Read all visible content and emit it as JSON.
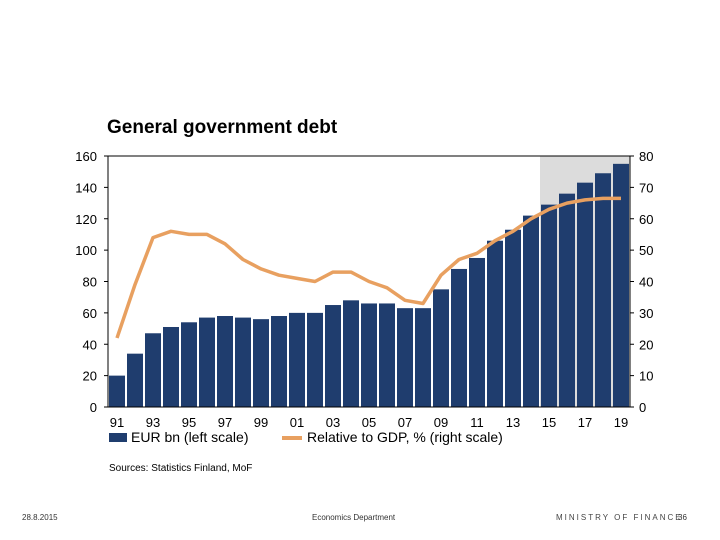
{
  "chart_data": {
    "type": "bar",
    "title": "General government debt",
    "x_tick_labels": [
      "91",
      "93",
      "95",
      "97",
      "99",
      "01",
      "03",
      "05",
      "07",
      "09",
      "11",
      "13",
      "15",
      "17",
      "19"
    ],
    "categories": [
      "91",
      "92",
      "93",
      "94",
      "95",
      "96",
      "97",
      "98",
      "99",
      "00",
      "01",
      "02",
      "03",
      "04",
      "05",
      "06",
      "07",
      "08",
      "09",
      "10",
      "11",
      "12",
      "13",
      "14",
      "15",
      "16",
      "17",
      "18",
      "19"
    ],
    "series": [
      {
        "name": "EUR bn (left scale)",
        "type": "bar",
        "axis": "left",
        "color": "#1f3d6e",
        "values": [
          20,
          34,
          47,
          51,
          54,
          57,
          58,
          57,
          56,
          58,
          60,
          60,
          65,
          68,
          66,
          66,
          63,
          63,
          75,
          88,
          95,
          106,
          113,
          122,
          129,
          136,
          143,
          149,
          155
        ]
      },
      {
        "name": "Relative to GDP, % (right scale)",
        "type": "line",
        "axis": "right",
        "color": "#e8a060",
        "values": [
          22,
          39,
          54,
          56,
          55,
          55,
          52,
          47,
          44,
          42,
          41,
          40,
          43,
          43,
          40,
          38,
          34,
          33,
          42,
          47,
          49,
          53,
          56,
          60,
          63,
          65,
          66,
          66.5,
          66.5
        ]
      }
    ],
    "ylim_left": [
      0,
      160
    ],
    "yticks_left": [
      0,
      20,
      40,
      60,
      80,
      100,
      120,
      140,
      160
    ],
    "ylim_right": [
      0,
      80
    ],
    "yticks_right": [
      0,
      10,
      20,
      30,
      40,
      50,
      60,
      70,
      80
    ],
    "forecast_shading": {
      "from": "15",
      "to": "19",
      "color": "#dcdcdc"
    },
    "legend_position": "bottom",
    "grid": false
  },
  "source": "Sources: Statistics Finland, MoF",
  "footer": {
    "date": "28.8.2015",
    "department": "Economics Department",
    "ministry": "MINISTRY OF FINANCE",
    "page": "36"
  }
}
